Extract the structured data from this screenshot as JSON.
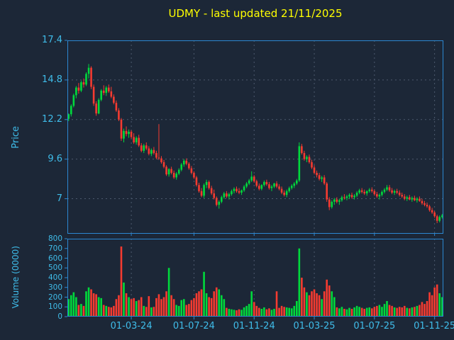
{
  "title": "UDMY - last updated 21/11/2025",
  "symbol": "UDMY",
  "last_updated": "21/11/2025",
  "colors": {
    "background": "#1c2737",
    "frame": "#2c87d0",
    "tick_text": "#3fbdea",
    "title_text": "#ffff00",
    "grid": "#4d5a6e",
    "up": "#00d93c",
    "down": "#f63b30"
  },
  "chart_data": {
    "type": "candlestick",
    "title": "UDMY - last updated 21/11/2025",
    "panels": [
      {
        "name": "price",
        "ylabel": "Price",
        "ylim": [
          4.7,
          17.4
        ],
        "yticks": [
          17.4,
          14.8,
          12.2,
          9.6,
          7
        ]
      },
      {
        "name": "volume",
        "ylabel": "Volume (0000)",
        "ylim": [
          0,
          800
        ],
        "yticks": [
          800,
          700,
          600,
          500,
          400,
          300,
          200,
          100,
          0
        ]
      }
    ],
    "x_ticks": [
      {
        "label": "01-03-24",
        "index": 25
      },
      {
        "label": "01-07-24",
        "index": 50
      },
      {
        "label": "01-11-24",
        "index": 74
      },
      {
        "label": "01-03-25",
        "index": 98
      },
      {
        "label": "01-07-25",
        "index": 122
      },
      {
        "label": "01-11-25",
        "index": 146
      }
    ],
    "grid": "dashed, vertical at date ticks in both panels, horizontal at price ticks",
    "columns": [
      "open",
      "high",
      "low",
      "close",
      "volume"
    ],
    "ohlcv": [
      [
        12.25,
        12.6,
        12.1,
        12.55,
        180
      ],
      [
        12.55,
        13.2,
        12.4,
        13.1,
        220
      ],
      [
        13.1,
        13.9,
        13.0,
        13.8,
        250
      ],
      [
        13.8,
        14.4,
        13.6,
        14.3,
        200
      ],
      [
        14.3,
        14.6,
        13.9,
        14.1,
        120
      ],
      [
        14.1,
        14.75,
        14.0,
        14.65,
        130
      ],
      [
        14.65,
        14.9,
        14.3,
        14.5,
        110
      ],
      [
        14.5,
        15.3,
        14.4,
        15.2,
        260
      ],
      [
        15.2,
        15.85,
        14.9,
        15.6,
        300
      ],
      [
        15.6,
        15.7,
        14.2,
        14.35,
        280
      ],
      [
        14.35,
        14.5,
        13.1,
        13.25,
        240
      ],
      [
        13.25,
        13.4,
        12.45,
        12.6,
        230
      ],
      [
        12.6,
        13.6,
        12.55,
        13.5,
        200
      ],
      [
        13.5,
        14.2,
        13.4,
        14.1,
        190
      ],
      [
        14.1,
        14.45,
        13.8,
        13.95,
        120
      ],
      [
        13.95,
        14.4,
        13.75,
        14.3,
        110
      ],
      [
        14.3,
        14.5,
        13.95,
        14.05,
        100
      ],
      [
        14.05,
        14.35,
        13.6,
        13.7,
        95
      ],
      [
        13.7,
        13.85,
        13.2,
        13.3,
        110
      ],
      [
        13.3,
        13.45,
        12.7,
        12.8,
        180
      ],
      [
        12.8,
        12.95,
        12.1,
        12.2,
        220
      ],
      [
        12.2,
        12.3,
        10.8,
        10.95,
        720
      ],
      [
        10.95,
        11.6,
        10.7,
        11.45,
        350
      ],
      [
        11.45,
        11.75,
        11.1,
        11.25,
        240
      ],
      [
        11.25,
        11.55,
        11.0,
        11.4,
        200
      ],
      [
        11.4,
        11.5,
        10.95,
        11.05,
        180
      ],
      [
        11.05,
        11.3,
        10.6,
        10.7,
        190
      ],
      [
        10.7,
        11.1,
        10.55,
        11.0,
        160
      ],
      [
        11.0,
        11.2,
        10.4,
        10.5,
        170
      ],
      [
        10.5,
        10.65,
        10.05,
        10.15,
        200
      ],
      [
        10.15,
        10.6,
        10.0,
        10.5,
        110
      ],
      [
        10.5,
        10.7,
        10.2,
        10.3,
        100
      ],
      [
        10.3,
        10.45,
        9.85,
        9.95,
        210
      ],
      [
        9.95,
        10.3,
        9.8,
        10.2,
        95
      ],
      [
        10.2,
        10.4,
        9.9,
        10.0,
        100
      ],
      [
        10.0,
        10.15,
        9.6,
        9.7,
        190
      ],
      [
        9.7,
        11.9,
        9.55,
        9.65,
        230
      ],
      [
        9.65,
        9.8,
        9.3,
        9.4,
        180
      ],
      [
        9.4,
        9.55,
        9.0,
        9.1,
        200
      ],
      [
        9.1,
        9.2,
        8.5,
        8.6,
        260
      ],
      [
        8.6,
        9.0,
        8.45,
        8.95,
        500
      ],
      [
        8.95,
        9.1,
        8.6,
        8.7,
        220
      ],
      [
        8.7,
        8.85,
        8.3,
        8.4,
        180
      ],
      [
        8.4,
        8.75,
        8.25,
        8.65,
        120
      ],
      [
        8.65,
        9.0,
        8.55,
        8.9,
        110
      ],
      [
        8.9,
        9.35,
        8.8,
        9.25,
        170
      ],
      [
        9.25,
        9.6,
        9.1,
        9.5,
        180
      ],
      [
        9.5,
        9.65,
        9.2,
        9.3,
        120
      ],
      [
        9.3,
        9.4,
        8.9,
        9.0,
        130
      ],
      [
        9.0,
        9.15,
        8.6,
        8.7,
        170
      ],
      [
        8.7,
        8.8,
        8.3,
        8.4,
        190
      ],
      [
        8.4,
        8.5,
        7.8,
        7.9,
        240
      ],
      [
        7.9,
        8.05,
        7.4,
        7.5,
        260
      ],
      [
        7.5,
        7.7,
        7.1,
        7.2,
        280
      ],
      [
        7.2,
        8.0,
        7.05,
        7.9,
        460
      ],
      [
        7.9,
        8.25,
        7.7,
        8.1,
        240
      ],
      [
        8.1,
        8.2,
        7.6,
        7.7,
        200
      ],
      [
        7.7,
        7.85,
        7.25,
        7.35,
        190
      ],
      [
        7.35,
        7.6,
        6.95,
        7.05,
        260
      ],
      [
        7.05,
        7.15,
        6.5,
        6.6,
        300
      ],
      [
        6.6,
        6.9,
        6.35,
        6.8,
        280
      ],
      [
        6.8,
        7.2,
        6.7,
        7.1,
        220
      ],
      [
        7.1,
        7.45,
        7.0,
        7.35,
        180
      ],
      [
        7.35,
        7.5,
        7.05,
        7.15,
        90
      ],
      [
        7.15,
        7.4,
        6.95,
        7.3,
        80
      ],
      [
        7.3,
        7.6,
        7.2,
        7.5,
        75
      ],
      [
        7.5,
        7.75,
        7.35,
        7.65,
        70
      ],
      [
        7.65,
        7.8,
        7.4,
        7.5,
        65
      ],
      [
        7.5,
        7.7,
        7.3,
        7.4,
        75
      ],
      [
        7.4,
        7.6,
        7.25,
        7.55,
        70
      ],
      [
        7.55,
        7.9,
        7.45,
        7.8,
        95
      ],
      [
        7.8,
        8.1,
        7.7,
        8.0,
        110
      ],
      [
        8.0,
        8.3,
        7.9,
        8.2,
        130
      ],
      [
        8.2,
        8.8,
        8.1,
        8.45,
        260
      ],
      [
        8.45,
        8.55,
        8.05,
        8.15,
        150
      ],
      [
        8.15,
        8.25,
        7.75,
        7.85,
        110
      ],
      [
        7.85,
        8.0,
        7.55,
        7.65,
        90
      ],
      [
        7.65,
        7.95,
        7.55,
        7.9,
        80
      ],
      [
        7.9,
        8.2,
        7.8,
        8.1,
        95
      ],
      [
        8.1,
        8.25,
        7.85,
        7.95,
        75
      ],
      [
        7.95,
        8.1,
        7.6,
        7.7,
        85
      ],
      [
        7.7,
        7.9,
        7.5,
        7.8,
        70
      ],
      [
        7.8,
        8.05,
        7.7,
        8.0,
        80
      ],
      [
        8.0,
        8.15,
        7.7,
        7.8,
        260
      ],
      [
        7.8,
        7.95,
        7.55,
        7.65,
        90
      ],
      [
        7.65,
        7.8,
        7.3,
        7.4,
        110
      ],
      [
        7.4,
        7.55,
        7.15,
        7.25,
        100
      ],
      [
        7.25,
        7.6,
        7.1,
        7.5,
        95
      ],
      [
        7.5,
        7.8,
        7.4,
        7.7,
        90
      ],
      [
        7.7,
        7.95,
        7.6,
        7.85,
        85
      ],
      [
        7.85,
        8.1,
        7.7,
        8.0,
        110
      ],
      [
        8.0,
        8.3,
        7.9,
        8.2,
        160
      ],
      [
        8.2,
        10.7,
        8.1,
        10.45,
        700
      ],
      [
        10.45,
        10.6,
        9.9,
        10.0,
        400
      ],
      [
        10.0,
        10.15,
        9.5,
        9.6,
        300
      ],
      [
        9.6,
        9.85,
        9.4,
        9.75,
        250
      ],
      [
        9.75,
        9.9,
        9.3,
        9.4,
        220
      ],
      [
        9.4,
        9.55,
        8.95,
        9.05,
        260
      ],
      [
        9.05,
        9.2,
        8.6,
        8.7,
        280
      ],
      [
        8.7,
        8.85,
        8.4,
        8.55,
        240
      ],
      [
        8.55,
        8.7,
        8.2,
        8.3,
        220
      ],
      [
        8.3,
        8.5,
        8.1,
        8.4,
        180
      ],
      [
        8.4,
        8.55,
        7.9,
        8.0,
        260
      ],
      [
        8.0,
        8.1,
        6.8,
        6.95,
        380
      ],
      [
        6.95,
        7.1,
        6.25,
        6.45,
        320
      ],
      [
        6.45,
        6.9,
        6.35,
        6.8,
        260
      ],
      [
        6.8,
        7.05,
        6.6,
        6.95,
        200
      ],
      [
        6.95,
        7.1,
        6.7,
        6.8,
        95
      ],
      [
        6.8,
        7.0,
        6.6,
        6.9,
        85
      ],
      [
        6.9,
        7.2,
        6.8,
        7.1,
        100
      ],
      [
        7.1,
        7.3,
        6.95,
        7.05,
        80
      ],
      [
        7.05,
        7.25,
        6.9,
        7.15,
        75
      ],
      [
        7.15,
        7.35,
        7.0,
        7.25,
        90
      ],
      [
        7.25,
        7.4,
        7.0,
        7.1,
        80
      ],
      [
        7.1,
        7.3,
        6.95,
        7.2,
        95
      ],
      [
        7.2,
        7.5,
        7.1,
        7.4,
        110
      ],
      [
        7.4,
        7.65,
        7.3,
        7.55,
        100
      ],
      [
        7.55,
        7.7,
        7.35,
        7.45,
        90
      ],
      [
        7.45,
        7.6,
        7.25,
        7.35,
        80
      ],
      [
        7.35,
        7.55,
        7.2,
        7.5,
        90
      ],
      [
        7.5,
        7.7,
        7.4,
        7.6,
        95
      ],
      [
        7.6,
        7.75,
        7.4,
        7.5,
        85
      ],
      [
        7.5,
        7.6,
        7.2,
        7.3,
        100
      ],
      [
        7.3,
        7.45,
        7.05,
        7.15,
        110
      ],
      [
        7.15,
        7.35,
        6.95,
        7.25,
        120
      ],
      [
        7.25,
        7.55,
        7.15,
        7.45,
        100
      ],
      [
        7.45,
        7.7,
        7.35,
        7.6,
        130
      ],
      [
        7.6,
        7.9,
        7.5,
        7.75,
        160
      ],
      [
        7.75,
        7.9,
        7.45,
        7.55,
        120
      ],
      [
        7.55,
        7.7,
        7.3,
        7.4,
        110
      ],
      [
        7.4,
        7.6,
        7.25,
        7.5,
        95
      ],
      [
        7.5,
        7.65,
        7.3,
        7.4,
        90
      ],
      [
        7.4,
        7.55,
        7.15,
        7.25,
        100
      ],
      [
        7.25,
        7.4,
        7.05,
        7.15,
        95
      ],
      [
        7.15,
        7.3,
        6.9,
        7.0,
        110
      ],
      [
        7.0,
        7.2,
        6.85,
        7.1,
        90
      ],
      [
        7.1,
        7.25,
        6.9,
        6.95,
        85
      ],
      [
        6.95,
        7.15,
        6.8,
        7.05,
        95
      ],
      [
        7.05,
        7.2,
        6.85,
        6.9,
        100
      ],
      [
        6.9,
        7.1,
        6.75,
        7.0,
        110
      ],
      [
        7.0,
        7.15,
        6.8,
        6.85,
        120
      ],
      [
        6.85,
        7.0,
        6.6,
        6.7,
        150
      ],
      [
        6.7,
        6.85,
        6.5,
        6.6,
        130
      ],
      [
        6.6,
        6.75,
        6.4,
        6.5,
        160
      ],
      [
        6.5,
        6.6,
        6.15,
        6.25,
        250
      ],
      [
        6.25,
        6.4,
        6.0,
        6.1,
        220
      ],
      [
        6.1,
        6.2,
        5.75,
        5.85,
        300
      ],
      [
        5.85,
        5.95,
        5.4,
        5.55,
        330
      ],
      [
        5.55,
        5.9,
        5.45,
        5.8,
        240
      ],
      [
        5.8,
        6.0,
        5.7,
        5.9,
        200
      ]
    ]
  }
}
